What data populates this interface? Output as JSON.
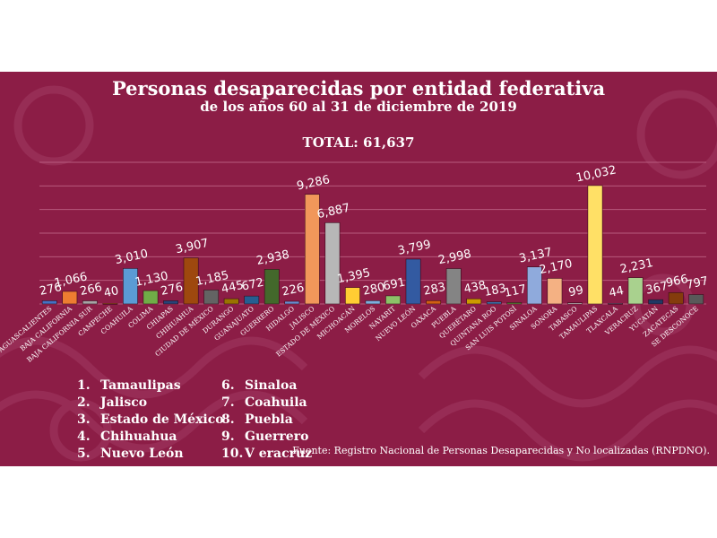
{
  "header": {
    "title": "Personas desaparecidas por entidad federativa",
    "subtitle": "de los años 60  al 31 de diciembre de 2019",
    "total": "TOTAL: 61,637"
  },
  "colors": {
    "background": "#8c1d46",
    "gridline": "#b85a7e",
    "text": "#ffffff"
  },
  "chart_data": {
    "type": "bar",
    "title": "Personas desaparecidas por entidad federativa",
    "subtitle": "de los años 60  al 31 de diciembre de 2019",
    "ylim": [
      0,
      12000
    ],
    "grid": true,
    "categories": [
      "AGUASCALIENTES",
      "BAJA CALIFORNIA",
      "BAJA CALIFORNIA SUR",
      "CAMPECHE",
      "COAHUILA",
      "COLIMA",
      "CHIAPAS",
      "CHIHUAHUA",
      "CIUDAD DE MÉXICO",
      "DURANGO",
      "GUANAJUATO",
      "GUERRERO",
      "HIDALGO",
      "JALISCO",
      "ESTADO DE MÉXICO",
      "MICHOACÁN",
      "MORELOS",
      "NAYARIT",
      "NUEVO LEÓN",
      "OAXACA",
      "PUEBLA",
      "QUERÉTARO",
      "QUINTANA ROO",
      "SAN LUIS POTOSÍ",
      "SINALOA",
      "SONORA",
      "TABASCO",
      "TAMAULIPAS",
      "TLAXCALA",
      "VERACRUZ",
      "YUCATÁN",
      "ZACATECAS",
      "SE DESCONOCE"
    ],
    "values": [
      276,
      1066,
      266,
      40,
      3010,
      1130,
      276,
      3907,
      1185,
      445,
      672,
      2938,
      226,
      9286,
      6887,
      1395,
      280,
      691,
      3799,
      283,
      2998,
      438,
      183,
      117,
      3137,
      2170,
      99,
      10032,
      44,
      2231,
      367,
      966,
      797
    ],
    "value_labels": [
      "276",
      "1,066",
      "266",
      "40",
      "3,010",
      "1,130",
      "276",
      "3,907",
      "1,185",
      "445",
      "672",
      "2,938",
      "226",
      "9,286",
      "6,887",
      "1,395",
      "280",
      "691",
      "3,799",
      "283",
      "2,998",
      "438",
      "183",
      "117",
      "3,137",
      "2,170",
      "99",
      "10,032",
      "44",
      "2,231",
      "367",
      "966",
      "797"
    ],
    "colors": [
      "#4472c4",
      "#ed7d31",
      "#a5a5a5",
      "#ffc000",
      "#5b9bd5",
      "#70ad47",
      "#264478",
      "#9e480e",
      "#636363",
      "#997300",
      "#255e91",
      "#43682b",
      "#698ed0",
      "#f1975a",
      "#b7b7b7",
      "#ffcd33",
      "#7cafdd",
      "#8cc168",
      "#335aa1",
      "#d26012",
      "#848484",
      "#cc9a00",
      "#3a6ea5",
      "#579135",
      "#8faadc",
      "#f4b183",
      "#c9c9c9",
      "#ffe066",
      "#9dc3e6",
      "#a9d18e",
      "#203864",
      "#843c0c",
      "#595959"
    ]
  },
  "ranking": [
    {
      "n": "1.",
      "label": "Tamaulipas"
    },
    {
      "n": "2.",
      "label": "Jalisco"
    },
    {
      "n": "3.",
      "label": "Estado de México"
    },
    {
      "n": "4.",
      "label": "Chihuahua"
    },
    {
      "n": "5.",
      "label": "Nuevo León"
    },
    {
      "n": "6.",
      "label": "Sinaloa"
    },
    {
      "n": "7.",
      "label": "Coahuila"
    },
    {
      "n": "8.",
      "label": "Puebla"
    },
    {
      "n": "9.",
      "label": "Guerrero"
    },
    {
      "n": "10.",
      "label": "V eracruz"
    }
  ],
  "source": "Fuente: Registro Nacional de Personas Desaparecidas y No localizadas (RNPDNO)."
}
